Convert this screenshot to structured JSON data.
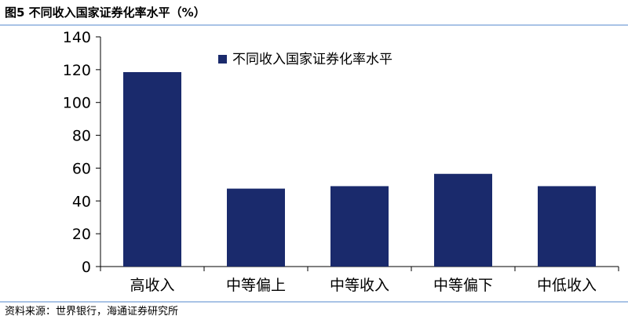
{
  "figure_title": "图5   不同收入国家证券化率水平（%）",
  "source_note": "资料来源：世界银行，海通证券研究所",
  "chart_data": {
    "type": "bar",
    "title": "",
    "xlabel": "",
    "ylabel": "",
    "categories": [
      "高收入",
      "中等偏上",
      "中等收入",
      "中等偏下",
      "中低收入"
    ],
    "series": [
      {
        "name": "不同收入国家证券化率水平",
        "values": [
          118.5,
          47.5,
          49,
          56.5,
          49
        ]
      }
    ],
    "ylim": [
      0,
      140
    ],
    "yticks": [
      "0",
      "20",
      "40",
      "60",
      "80",
      "100",
      "120",
      "140"
    ],
    "grid": false,
    "legend_position": "top-right",
    "bar_color": "#1a2a6c"
  }
}
